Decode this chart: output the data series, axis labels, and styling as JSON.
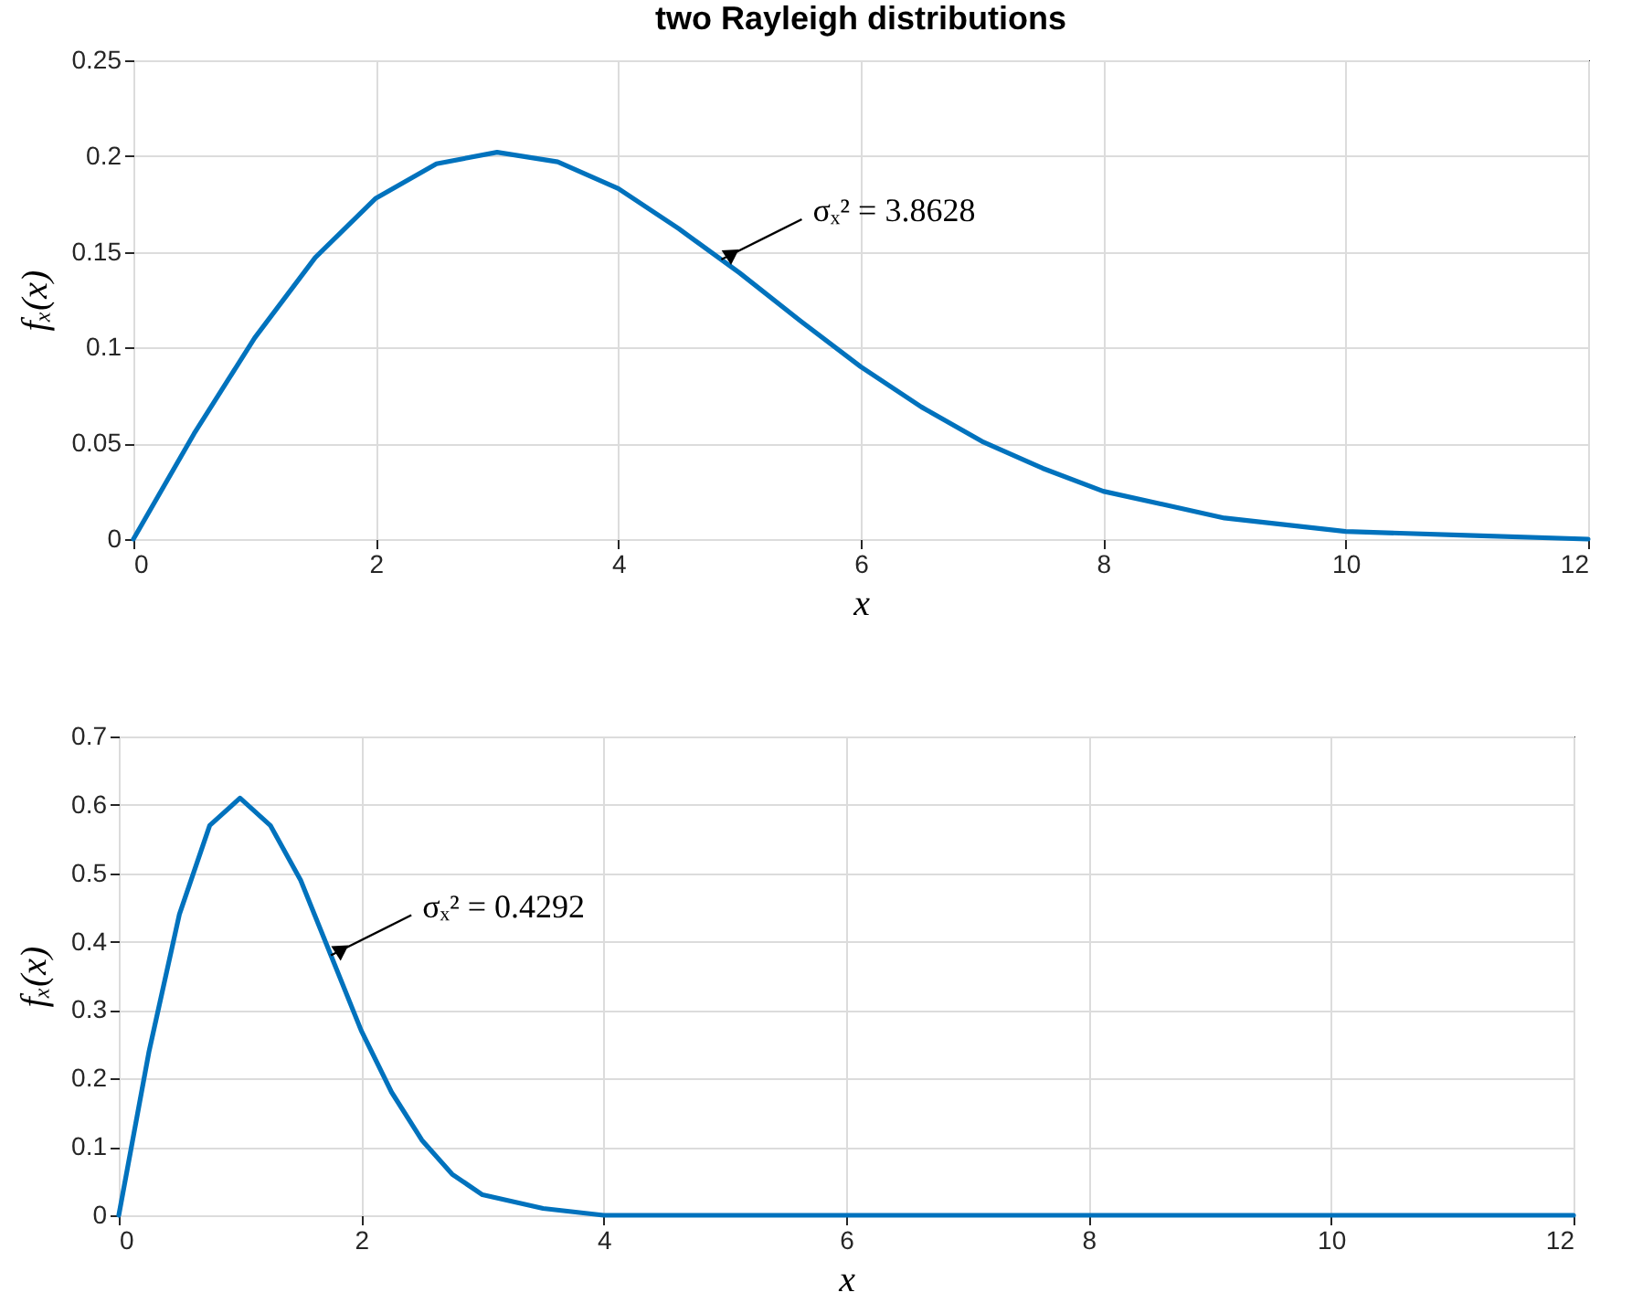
{
  "chart_data": [
    {
      "type": "line",
      "title": "two Rayleigh distributions",
      "xlabel": "x",
      "ylabel": "fₓ(x)",
      "x": [
        0,
        0.5,
        1,
        1.5,
        2,
        2.5,
        3,
        3.5,
        4,
        4.5,
        5,
        5.5,
        6,
        6.5,
        7,
        7.5,
        8,
        9,
        10,
        11,
        12
      ],
      "series": [
        {
          "color": "#0072bd",
          "values": [
            0,
            0.055,
            0.105,
            0.147,
            0.178,
            0.196,
            0.202,
            0.197,
            0.183,
            0.162,
            0.139,
            0.114,
            0.09,
            0.069,
            0.051,
            0.037,
            0.025,
            0.011,
            0.004,
            0.002,
            0
          ]
        }
      ],
      "xlim": [
        0,
        12
      ],
      "xticks": [
        0,
        2,
        4,
        6,
        8,
        10,
        12
      ],
      "ylim": [
        0,
        0.25
      ],
      "yticks": [
        0,
        0.05,
        0.1,
        0.15,
        0.2,
        0.25
      ],
      "grid": true,
      "annotations": [
        {
          "text": "σₓ² = 3.8628",
          "x": 4.85,
          "y": 0.146
        }
      ]
    },
    {
      "type": "line",
      "xlabel": "x",
      "ylabel": "fₓ(x)",
      "x": [
        0,
        0.25,
        0.5,
        0.75,
        1,
        1.25,
        1.5,
        1.75,
        2,
        2.25,
        2.5,
        2.75,
        3,
        3.5,
        4,
        5,
        6,
        8,
        10,
        12
      ],
      "series": [
        {
          "color": "#0072bd",
          "values": [
            0,
            0.24,
            0.44,
            0.57,
            0.61,
            0.57,
            0.49,
            0.38,
            0.27,
            0.18,
            0.11,
            0.06,
            0.03,
            0.01,
            0,
            0,
            0,
            0,
            0,
            0
          ]
        }
      ],
      "xlim": [
        0,
        12
      ],
      "xticks": [
        0,
        2,
        4,
        6,
        8,
        10,
        12
      ],
      "ylim": [
        0,
        0.7
      ],
      "yticks": [
        0,
        0.1,
        0.2,
        0.3,
        0.4,
        0.5,
        0.6,
        0.7
      ],
      "grid": true,
      "annotations": [
        {
          "text": "σₓ² = 0.4292",
          "x": 1.75,
          "y": 0.38
        }
      ]
    }
  ]
}
